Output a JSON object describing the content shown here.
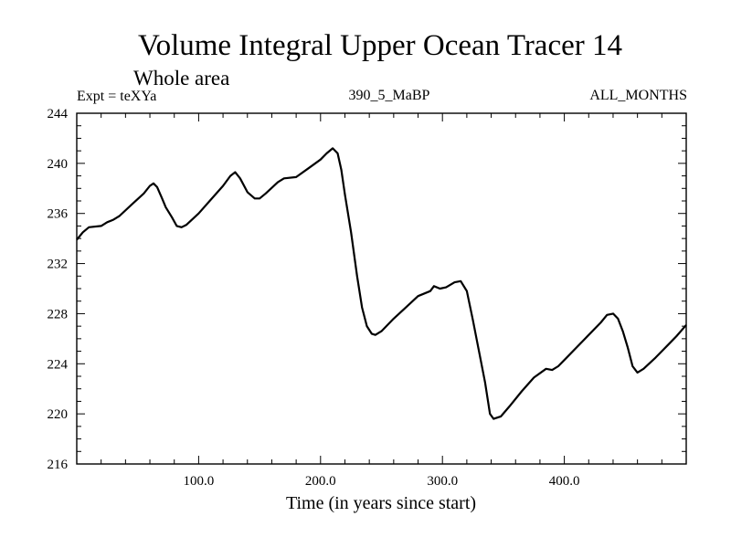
{
  "chart_data": {
    "type": "line",
    "title": "Volume Integral Upper Ocean Tracer 14",
    "subtitle": "Whole area",
    "header_left": "Expt = teXYa",
    "header_center": "390_5_MaBP",
    "header_right": "ALL_MONTHS",
    "xlabel": "Time (in years since start)",
    "ylabel": "",
    "xlim": [
      0,
      500
    ],
    "ylim": [
      216,
      244
    ],
    "x_ticks": [
      100,
      200,
      300,
      400
    ],
    "x_tick_labels": [
      "100.0",
      "200.0",
      "300.0",
      "400.0"
    ],
    "y_ticks": [
      216,
      220,
      224,
      228,
      232,
      236,
      240,
      244
    ],
    "y_tick_labels": [
      "216",
      "220",
      "224",
      "228",
      "232",
      "236",
      "240",
      "244"
    ],
    "grid": false,
    "series": [
      {
        "color": "#000000",
        "points": [
          [
            0,
            233.9
          ],
          [
            5,
            234.5
          ],
          [
            10,
            234.9
          ],
          [
            20,
            235.0
          ],
          [
            25,
            235.3
          ],
          [
            30,
            235.5
          ],
          [
            35,
            235.8
          ],
          [
            45,
            236.7
          ],
          [
            55,
            237.6
          ],
          [
            60,
            238.2
          ],
          [
            63,
            238.4
          ],
          [
            66,
            238.1
          ],
          [
            70,
            237.2
          ],
          [
            73,
            236.5
          ],
          [
            78,
            235.7
          ],
          [
            82,
            235.0
          ],
          [
            86,
            234.9
          ],
          [
            90,
            235.1
          ],
          [
            100,
            236.0
          ],
          [
            110,
            237.1
          ],
          [
            120,
            238.2
          ],
          [
            126,
            239.0
          ],
          [
            130,
            239.3
          ],
          [
            134,
            238.8
          ],
          [
            140,
            237.7
          ],
          [
            146,
            237.2
          ],
          [
            150,
            237.2
          ],
          [
            155,
            237.6
          ],
          [
            165,
            238.5
          ],
          [
            170,
            238.8
          ],
          [
            180,
            238.9
          ],
          [
            190,
            239.6
          ],
          [
            200,
            240.3
          ],
          [
            205,
            240.8
          ],
          [
            210,
            241.2
          ],
          [
            214,
            240.8
          ],
          [
            217,
            239.5
          ],
          [
            220,
            237.5
          ],
          [
            225,
            234.5
          ],
          [
            230,
            231.0
          ],
          [
            234,
            228.5
          ],
          [
            238,
            227.0
          ],
          [
            242,
            226.4
          ],
          [
            245,
            226.3
          ],
          [
            250,
            226.6
          ],
          [
            260,
            227.6
          ],
          [
            270,
            228.5
          ],
          [
            280,
            229.4
          ],
          [
            290,
            229.8
          ],
          [
            293,
            230.2
          ],
          [
            298,
            230.0
          ],
          [
            303,
            230.1
          ],
          [
            310,
            230.5
          ],
          [
            315,
            230.6
          ],
          [
            320,
            229.8
          ],
          [
            325,
            227.5
          ],
          [
            330,
            225.0
          ],
          [
            335,
            222.5
          ],
          [
            339,
            220.0
          ],
          [
            342,
            219.6
          ],
          [
            348,
            219.8
          ],
          [
            355,
            220.6
          ],
          [
            365,
            221.8
          ],
          [
            375,
            222.9
          ],
          [
            385,
            223.6
          ],
          [
            390,
            223.5
          ],
          [
            395,
            223.8
          ],
          [
            400,
            224.3
          ],
          [
            410,
            225.3
          ],
          [
            420,
            226.3
          ],
          [
            430,
            227.3
          ],
          [
            435,
            227.9
          ],
          [
            440,
            228.0
          ],
          [
            444,
            227.6
          ],
          [
            448,
            226.6
          ],
          [
            452,
            225.3
          ],
          [
            456,
            223.8
          ],
          [
            460,
            223.3
          ],
          [
            465,
            223.6
          ],
          [
            475,
            224.5
          ],
          [
            485,
            225.5
          ],
          [
            492,
            226.2
          ],
          [
            500,
            227.1
          ]
        ]
      }
    ]
  }
}
